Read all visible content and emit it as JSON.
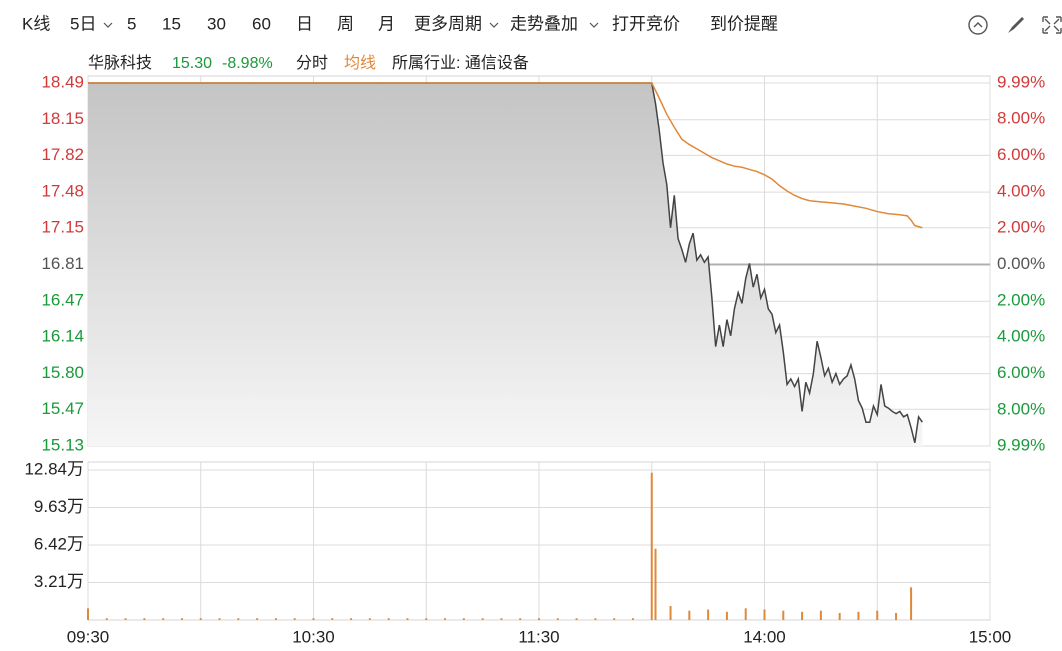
{
  "toolbar": {
    "items": [
      "K线",
      "5日",
      "5",
      "15",
      "30",
      "60",
      "日",
      "周",
      "月",
      "更多周期",
      "走势叠加",
      "打开竞价",
      "到价提醒"
    ]
  },
  "stock": {
    "name": "华脉科技",
    "price": "15.30",
    "change": "-8.98%",
    "industry": "所属行业: 通信设备"
  },
  "chart_data": [
    {
      "type": "line",
      "xlim": [
        0,
        240
      ],
      "ylim": [
        15.13,
        18.49
      ],
      "yticks": [
        18.49,
        18.15,
        17.82,
        17.48,
        17.15,
        16.81,
        16.47,
        16.14,
        {
          "value": 15.8,
          "label": "15.80"
        },
        15.47,
        15.13
      ],
      "y2lim": [
        -9.99,
        9.99
      ],
      "y2ticks": [
        {
          "value": 9.99,
          "label": "9.99%"
        },
        {
          "value": 8,
          "label": "8.00%"
        },
        {
          "value": 6,
          "label": "6.00%"
        },
        {
          "value": 4,
          "label": "4.00%"
        },
        {
          "value": 2,
          "label": "2.00%"
        },
        {
          "value": 0,
          "label": "0.00%"
        },
        {
          "value": -2,
          "label": "2.00%"
        },
        {
          "value": -4,
          "label": "4.00%"
        },
        {
          "value": -6,
          "label": "6.00%"
        },
        {
          "value": -8,
          "label": "8.00%"
        },
        {
          "value": -9.99,
          "label": "9.99%"
        }
      ],
      "grid": true,
      "series": [
        {
          "name": "分时",
          "color": "#444444",
          "x": [
            0,
            150,
            151,
            152,
            153,
            154,
            155,
            156,
            157,
            158,
            159,
            160,
            161,
            162,
            163,
            164,
            165,
            166,
            167,
            168,
            169,
            170,
            171,
            172,
            173,
            174,
            175,
            176,
            177,
            178,
            179,
            180,
            181,
            182,
            183,
            184,
            185,
            186,
            187,
            188,
            189,
            190,
            191,
            192,
            193,
            194,
            195,
            196,
            197,
            198,
            199,
            200,
            201,
            202,
            203,
            204,
            205,
            206,
            207,
            208,
            209,
            210,
            211,
            212,
            213,
            214,
            215,
            216,
            217,
            218,
            219,
            220,
            221,
            222
          ],
          "values": [
            18.49,
            18.49,
            18.3,
            18.05,
            17.75,
            17.55,
            17.15,
            17.45,
            17.05,
            16.95,
            16.83,
            17.0,
            17.1,
            16.85,
            16.9,
            16.83,
            16.88,
            16.5,
            16.05,
            16.25,
            16.05,
            16.3,
            16.15,
            16.4,
            16.55,
            16.45,
            16.68,
            16.82,
            16.6,
            16.72,
            16.5,
            16.58,
            16.4,
            16.35,
            16.18,
            16.25,
            16.0,
            15.7,
            15.75,
            15.68,
            15.75,
            15.45,
            15.72,
            15.62,
            15.8,
            16.1,
            15.95,
            15.78,
            15.85,
            15.72,
            15.8,
            15.7,
            15.75,
            15.78,
            15.88,
            15.75,
            15.55,
            15.48,
            15.35,
            15.35,
            15.5,
            15.42,
            15.7,
            15.5,
            15.48,
            15.45,
            15.43,
            15.45,
            15.4,
            15.42,
            15.3,
            15.16,
            15.4,
            15.35
          ]
        },
        {
          "name": "均线",
          "color": "#e0883a",
          "x": [
            0,
            150,
            152,
            154,
            156,
            158,
            160,
            162,
            164,
            166,
            168,
            170,
            172,
            174,
            176,
            178,
            180,
            182,
            184,
            186,
            188,
            190,
            192,
            195,
            198,
            201,
            204,
            207,
            210,
            213,
            216,
            218,
            219,
            220,
            222
          ],
          "values": [
            18.49,
            18.49,
            18.35,
            18.2,
            18.08,
            17.97,
            17.92,
            17.88,
            17.84,
            17.8,
            17.77,
            17.74,
            17.72,
            17.71,
            17.69,
            17.67,
            17.64,
            17.6,
            17.54,
            17.49,
            17.45,
            17.42,
            17.4,
            17.39,
            17.38,
            17.37,
            17.35,
            17.33,
            17.3,
            17.28,
            17.27,
            17.26,
            17.22,
            17.17,
            17.15
          ]
        }
      ]
    },
    {
      "type": "volume",
      "xlim": [
        0,
        240
      ],
      "ylim": [
        0,
        12.84
      ],
      "yticks": [
        {
          "value": 12.84,
          "label": "12.84万"
        },
        {
          "value": 9.63,
          "label": "9.63万"
        },
        {
          "value": 6.42,
          "label": "6.42万"
        },
        {
          "value": 3.21,
          "label": "3.21万"
        }
      ],
      "xticks": [
        {
          "value": 0,
          "label": "09:30"
        },
        {
          "value": 60,
          "label": "10:30"
        },
        {
          "value": 120,
          "label": "11:30"
        },
        {
          "value": 180,
          "label": "14:00"
        },
        {
          "value": 240,
          "label": "15:00"
        }
      ],
      "grid": true,
      "color": "#e0883a",
      "x": [
        0,
        5,
        10,
        15,
        20,
        25,
        30,
        35,
        40,
        45,
        50,
        55,
        60,
        65,
        70,
        75,
        80,
        85,
        90,
        95,
        100,
        105,
        110,
        115,
        120,
        125,
        130,
        135,
        140,
        145,
        150,
        151,
        155,
        160,
        165,
        170,
        175,
        180,
        185,
        190,
        195,
        200,
        205,
        210,
        215,
        219
      ],
      "values": [
        1.0,
        0.15,
        0.15,
        0.15,
        0.15,
        0.15,
        0.15,
        0.15,
        0.15,
        0.15,
        0.15,
        0.15,
        0.15,
        0.15,
        0.15,
        0.15,
        0.15,
        0.15,
        0.15,
        0.15,
        0.15,
        0.15,
        0.15,
        0.15,
        0.15,
        0.15,
        0.15,
        0.15,
        0.15,
        0.15,
        12.6,
        6.1,
        1.2,
        0.8,
        0.9,
        0.7,
        1.0,
        0.9,
        0.8,
        0.7,
        0.8,
        0.6,
        0.7,
        0.8,
        0.6,
        2.8
      ]
    }
  ]
}
